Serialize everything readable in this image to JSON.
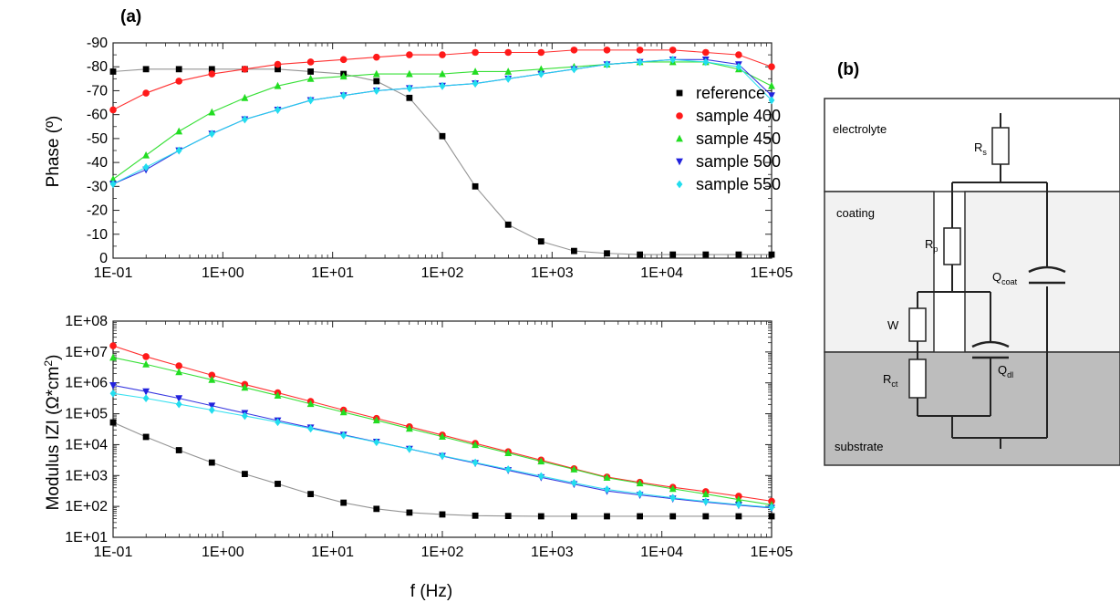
{
  "panel_a_label": "(a)",
  "panel_b_label": "(b)",
  "colors": {
    "reference": "#000000",
    "sample400": "#ff1a1a",
    "sample450": "#22dd22",
    "sample500": "#2222dd",
    "sample550": "#22ddee"
  },
  "chart_data": [
    {
      "type": "scatter",
      "x_scale": "log",
      "xlim": [
        0.1,
        100000
      ],
      "ylim": [
        0,
        -90
      ],
      "ylabel": "Phase (º)",
      "xlabel": "",
      "x_tick_labels": [
        "1E-01",
        "1E+00",
        "1E+01",
        "1E+02",
        "1E+03",
        "1E+04",
        "1E+05"
      ],
      "y_tick_labels": [
        "-90",
        "-80",
        "-70",
        "-60",
        "-50",
        "-40",
        "-30",
        "-20",
        "-10",
        "0"
      ],
      "legend_position": "right",
      "series": [
        {
          "name": "reference",
          "marker": "square",
          "color": "#000000",
          "y": [
            -78,
            -79,
            -79,
            -79,
            -79,
            -79,
            -78,
            -77,
            -74,
            -67,
            -51,
            -30,
            -14,
            -7,
            -3,
            -2,
            -1.5,
            -1.5,
            -1.5,
            -1.5,
            -1.5
          ]
        },
        {
          "name": "sample 400",
          "marker": "circle",
          "color": "#ff1a1a",
          "y": [
            -62,
            -69,
            -74,
            -77,
            -79,
            -81,
            -82,
            -83,
            -84,
            -85,
            -85,
            -86,
            -86,
            -86,
            -87,
            -87,
            -87,
            -87,
            -86,
            -85,
            -80
          ]
        },
        {
          "name": "sample 450",
          "marker": "triangle-up",
          "color": "#22dd22",
          "y": [
            -33,
            -43,
            -53,
            -61,
            -67,
            -72,
            -75,
            -76,
            -77,
            -77,
            -77,
            -78,
            -78,
            -79,
            -80,
            -81,
            -82,
            -82,
            -82,
            -79,
            -72
          ]
        },
        {
          "name": "sample 500",
          "marker": "triangle-down",
          "color": "#2222dd",
          "y": [
            -31,
            -37,
            -45,
            -52,
            -58,
            -62,
            -66,
            -68,
            -70,
            -71,
            -72,
            -73,
            -75,
            -77,
            -79,
            -81,
            -82,
            -83,
            -83,
            -81,
            -68
          ]
        },
        {
          "name": "sample 550",
          "marker": "diamond",
          "color": "#22ddee",
          "y": [
            -31,
            -38,
            -45,
            -52,
            -58,
            -62,
            -66,
            -68,
            -70,
            -71,
            -72,
            -73,
            -75,
            -77,
            -79,
            -81,
            -82,
            -83,
            -82,
            -80,
            -66
          ]
        }
      ]
    },
    {
      "type": "scatter",
      "x_scale": "log",
      "y_scale": "log",
      "xlim": [
        0.1,
        100000
      ],
      "ylim": [
        10,
        100000000
      ],
      "ylabel": "Modulus IZI (Ω*cm²)",
      "xlabel": "f (Hz)",
      "x_tick_labels": [
        "1E-01",
        "1E+00",
        "1E+01",
        "1E+02",
        "1E+03",
        "1E+04",
        "1E+05"
      ],
      "y_tick_labels": [
        "1E+08",
        "1E+07",
        "1E+06",
        "1E+05",
        "1E+04",
        "1E+03",
        "1E+02",
        "1E+01"
      ],
      "series": [
        {
          "name": "reference",
          "marker": "square",
          "color": "#000000",
          "log10y": [
            4.72,
            4.25,
            3.82,
            3.42,
            3.05,
            2.73,
            2.4,
            2.12,
            1.92,
            1.8,
            1.74,
            1.7,
            1.69,
            1.68,
            1.68,
            1.68,
            1.68,
            1.68,
            1.68,
            1.68,
            1.68
          ]
        },
        {
          "name": "sample 400",
          "marker": "circle",
          "color": "#ff1a1a",
          "log10y": [
            7.2,
            6.85,
            6.55,
            6.25,
            5.95,
            5.68,
            5.4,
            5.12,
            4.85,
            4.58,
            4.31,
            4.04,
            3.77,
            3.5,
            3.22,
            2.95,
            2.78,
            2.62,
            2.48,
            2.33,
            2.17
          ]
        },
        {
          "name": "sample 450",
          "marker": "triangle-up",
          "color": "#22dd22",
          "log10y": [
            6.82,
            6.6,
            6.35,
            6.1,
            5.85,
            5.59,
            5.32,
            5.05,
            4.79,
            4.52,
            4.26,
            3.99,
            3.73,
            3.46,
            3.2,
            2.93,
            2.75,
            2.57,
            2.4,
            2.22,
            2.05
          ]
        },
        {
          "name": "sample 500",
          "marker": "triangle-down",
          "color": "#2222dd",
          "log10y": [
            5.92,
            5.72,
            5.5,
            5.26,
            5.02,
            4.78,
            4.55,
            4.32,
            4.09,
            3.86,
            3.63,
            3.4,
            3.17,
            2.94,
            2.72,
            2.5,
            2.37,
            2.25,
            2.14,
            2.04,
            1.95
          ]
        },
        {
          "name": "sample 550",
          "marker": "diamond",
          "color": "#22ddee",
          "log10y": [
            5.66,
            5.5,
            5.31,
            5.12,
            4.93,
            4.73,
            4.52,
            4.3,
            4.08,
            3.86,
            3.64,
            3.42,
            3.2,
            2.98,
            2.76,
            2.55,
            2.41,
            2.28,
            2.16,
            2.06,
            1.97
          ]
        }
      ]
    }
  ],
  "circuit": {
    "layers": {
      "electrolyte": "electrolyte",
      "coating": "coating",
      "substrate": "substrate"
    },
    "components": {
      "rs": {
        "main": "R",
        "sub": "s"
      },
      "rp": {
        "main": "R",
        "sub": "p"
      },
      "qcoat": {
        "main": "Q",
        "sub": "coat"
      },
      "w": {
        "main": "W",
        "sub": ""
      },
      "qdl": {
        "main": "Q",
        "sub": "dl"
      },
      "rct": {
        "main": "R",
        "sub": "ct"
      }
    }
  }
}
